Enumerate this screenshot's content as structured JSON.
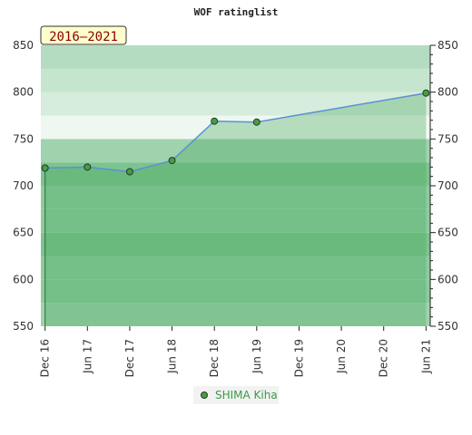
{
  "chart_data": {
    "type": "area",
    "title": "WOF ratinglist",
    "period_label": "2016–2021",
    "x_ticks": [
      "Dec 16",
      "Jun 17",
      "Dec 17",
      "Jun 18",
      "Dec 18",
      "Jun 19",
      "Dec 19",
      "Jun 20",
      "Dec 20",
      "Jun 21"
    ],
    "ylim": [
      550,
      850
    ],
    "y_ticks": [
      550,
      600,
      650,
      700,
      750,
      800,
      850
    ],
    "series": [
      {
        "name": "SHIMA Kiha",
        "points": [
          {
            "x": "Dec 16",
            "y": 719
          },
          {
            "x": "Jun 17",
            "y": 720
          },
          {
            "x": "Dec 17",
            "y": 715
          },
          {
            "x": "Jun 18",
            "y": 727
          },
          {
            "x": "Dec 18",
            "y": 769
          },
          {
            "x": "Jun 19",
            "y": 768
          },
          {
            "x": "Jun 21",
            "y": 799
          }
        ]
      }
    ],
    "colors": {
      "line": "#5b8fd6",
      "marker_fill": "#4a9a4a",
      "marker_stroke": "#1f3d1f",
      "fill_above": "#b8dfc0",
      "fill_below": "#7cc38f",
      "legend_text": "#3a9a4a",
      "badge_bg": "#ffffcc",
      "badge_text": "#8b0000"
    }
  }
}
